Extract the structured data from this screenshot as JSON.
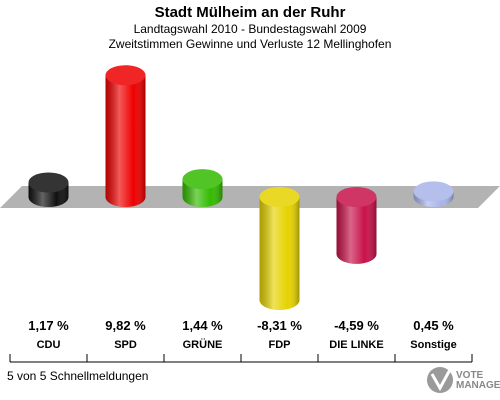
{
  "chart_data": {
    "type": "bar",
    "title": "Stadt Mülheim an der Ruhr",
    "subtitles": [
      "Landtagswahl 2010 - Bundestagswahl 2009",
      "Zweitstimmen Gewinne und Verluste 12 Mellinghofen"
    ],
    "categories": [
      "CDU",
      "SPD",
      "GRÜNE",
      "FDP",
      "DIE LINKE",
      "Sonstige"
    ],
    "values": [
      1.17,
      9.82,
      1.44,
      -8.31,
      -4.59,
      0.45
    ],
    "value_labels": [
      "1,17 %",
      "9,82 %",
      "1,44 %",
      "-8,31 %",
      "-4,59 %",
      "0,45 %"
    ],
    "colors": [
      "#111111",
      "#ee0000",
      "#33bb00",
      "#e6d200",
      "#c8134a",
      "#a8b4e8"
    ],
    "footer": "5 von 5 Schnellmeldungen",
    "logo": "VOTE MANAGER"
  }
}
